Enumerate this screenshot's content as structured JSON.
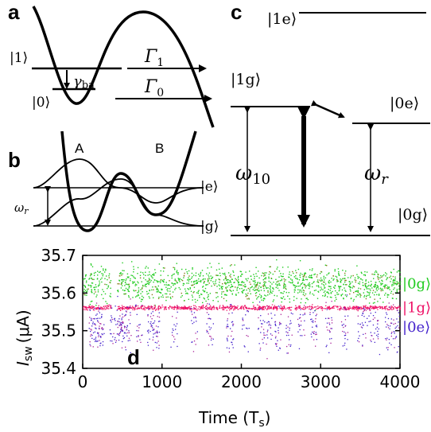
{
  "panel_a": {
    "label": "a",
    "state_upper": "|1⟩",
    "state_lower": "|0⟩",
    "decay_symbol": "γ",
    "decay_sub": "ba",
    "rate1_symbol": "Γ",
    "rate1_sub": "1",
    "rate0_symbol": "Γ",
    "rate0_sub": "0"
  },
  "panel_b": {
    "label": "b",
    "well_a": "A",
    "well_b": "B",
    "state_e": "|e⟩",
    "state_g": "|g⟩",
    "freq_symbol": "ω",
    "freq_sub": "r"
  },
  "panel_c": {
    "label": "c",
    "state_1e": "|1e⟩",
    "state_1g": "|1g⟩",
    "state_0e": "|0e⟩",
    "state_0g": "|0g⟩",
    "freq10_symbol": "ω",
    "freq10_sub": "10",
    "freqr_symbol": "ω",
    "freqr_sub": "r"
  },
  "chart_data": {
    "type": "scatter",
    "panel_label": "d",
    "xlabel": "Time (T",
    "xlabel_sub": "s",
    "xlabel_end": ")",
    "ylabel": "I",
    "ylabel_sub": "sw",
    "ylabel_unit": "(μA)",
    "xlim": [
      0,
      4000
    ],
    "ylim": [
      35.4,
      35.7
    ],
    "xticks": [
      0,
      1000,
      2000,
      3000,
      4000
    ],
    "yticks": [
      "35.4",
      "35.5",
      "35.6",
      "35.7"
    ],
    "series": [
      {
        "name": "|0g⟩",
        "color": "#22cc22",
        "center": 35.625,
        "spread": 0.022
      },
      {
        "name": "|1g⟩",
        "color": "#ee1166",
        "center": 35.562,
        "spread": 0.003
      },
      {
        "name": "|0e⟩",
        "color": "#4422cc",
        "center": 35.51,
        "spread": 0.03
      }
    ]
  }
}
